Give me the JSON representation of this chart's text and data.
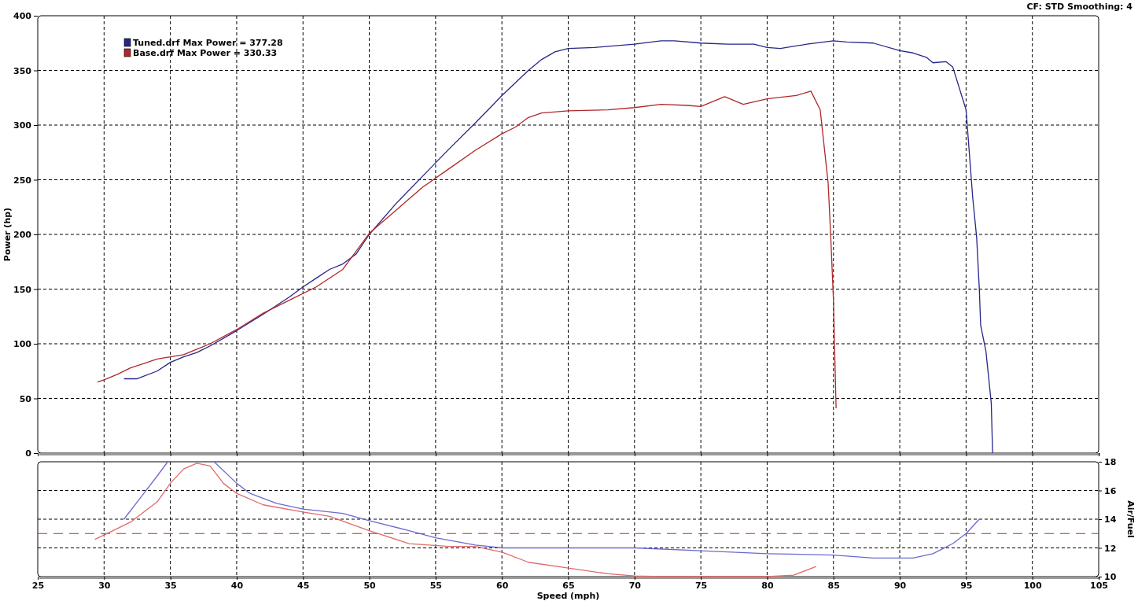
{
  "chart_data": [
    {
      "type": "line",
      "ylabel": "Power (hp)",
      "annotations": [
        "CF: STD  Smoothing: 4"
      ],
      "xlim": [
        25,
        105
      ],
      "xticks": [
        25,
        30,
        35,
        40,
        45,
        50,
        55,
        60,
        65,
        70,
        75,
        80,
        85,
        90,
        95,
        100,
        105
      ],
      "ylim": [
        0,
        400
      ],
      "yticks": [
        0,
        50,
        100,
        150,
        200,
        250,
        300,
        350,
        400
      ],
      "tick_labels": "y",
      "grid": true,
      "legend": "top left",
      "line_style": "solid",
      "marker": "none",
      "series": [
        {
          "name": "Tuned.drf Max Power = 377.28",
          "color": "#26268a",
          "x": [
            31.5,
            32.5,
            34,
            35,
            36,
            37,
            38,
            40,
            42,
            44,
            45,
            46,
            47,
            48,
            49,
            50,
            52,
            54,
            56,
            58,
            60,
            62,
            63,
            64,
            65,
            67,
            70,
            72,
            73,
            75,
            77,
            79,
            80,
            81,
            83,
            85,
            86,
            88,
            90,
            91,
            92,
            92.5,
            93.5,
            94,
            95,
            95.5,
            95.8,
            96,
            96.1,
            96.5,
            96.9,
            97
          ],
          "values": [
            68,
            68,
            75,
            83,
            88,
            92,
            98,
            112,
            127,
            143,
            152,
            160,
            168,
            173,
            182,
            200,
            228,
            253,
            278,
            302,
            327,
            350,
            360,
            367,
            370,
            371,
            374,
            377,
            377,
            375,
            374,
            374,
            371,
            370,
            374,
            377,
            376,
            375,
            368,
            366,
            362,
            357,
            358,
            353,
            314,
            234,
            197,
            150,
            117,
            93,
            46,
            0
          ]
        },
        {
          "name": "Base.drf Max Power = 330.33",
          "color": "#b02828",
          "x": [
            29.5,
            30,
            31,
            32,
            33,
            34,
            35,
            36,
            37,
            38,
            40,
            42,
            44,
            46,
            48,
            50,
            52,
            54,
            56,
            58,
            60,
            61,
            62,
            63,
            65,
            68,
            70,
            72,
            74,
            75,
            76.8,
            78.2,
            80,
            82.2,
            83.3,
            84,
            84.6,
            84.8,
            85,
            85.2
          ],
          "values": [
            65,
            67,
            72,
            78,
            82,
            86,
            88,
            90,
            95,
            100,
            113,
            128,
            140,
            152,
            168,
            201,
            222,
            243,
            260,
            277,
            292,
            298,
            307,
            311,
            313,
            314,
            316,
            319,
            318,
            317,
            326,
            319,
            324,
            327,
            331,
            314,
            247,
            197,
            140,
            41
          ]
        }
      ]
    },
    {
      "type": "line",
      "xlabel": "Speed (mph)",
      "y2label": "Air/Fuel",
      "xlim": [
        25,
        105
      ],
      "xticks": [
        25,
        30,
        35,
        40,
        45,
        50,
        55,
        60,
        65,
        70,
        75,
        80,
        85,
        90,
        95,
        100,
        105
      ],
      "y2lim": [
        10,
        18
      ],
      "y2ticks": [
        10,
        12,
        14,
        16,
        18
      ],
      "grid": true,
      "line_style": "solid",
      "marker": "none",
      "ref_lines": [
        {
          "axis": "y2",
          "value": 13,
          "color": "#d02020",
          "line_style": "dashed"
        }
      ],
      "series": [
        {
          "axis": "y2",
          "color": "#6a6ad0",
          "x": [
            31.5,
            33,
            34,
            34.8,
            36,
            38.3,
            40,
            41,
            43,
            45,
            48,
            50,
            53,
            55,
            58,
            60,
            65,
            70,
            75,
            80,
            85,
            88,
            91,
            92.5,
            94,
            95,
            96
          ],
          "values": [
            14.0,
            15.8,
            17.0,
            18,
            null,
            18,
            16.5,
            15.8,
            15.1,
            14.7,
            14.4,
            13.9,
            13.2,
            12.7,
            12.2,
            12.0,
            12.0,
            12.0,
            11.8,
            11.6,
            11.5,
            11.3,
            11.3,
            11.6,
            12.3,
            13.0,
            14.0
          ]
        },
        {
          "axis": "y2",
          "color": "#e06a6a",
          "x": [
            29.3,
            30,
            32,
            34,
            35,
            36,
            37,
            38,
            39,
            40,
            42,
            45,
            47,
            50,
            53,
            56,
            58,
            60,
            62,
            65,
            68,
            70,
            72,
            80,
            82,
            83.7
          ],
          "values": [
            12.6,
            12.9,
            13.8,
            15.2,
            16.5,
            17.5,
            17.9,
            17.7,
            16.5,
            15.8,
            15.0,
            14.5,
            14.2,
            13.2,
            12.3,
            12.1,
            12.1,
            11.7,
            11.0,
            10.6,
            10.2,
            10.05,
            10.0,
            10.0,
            10.1,
            10.7
          ]
        }
      ]
    }
  ]
}
